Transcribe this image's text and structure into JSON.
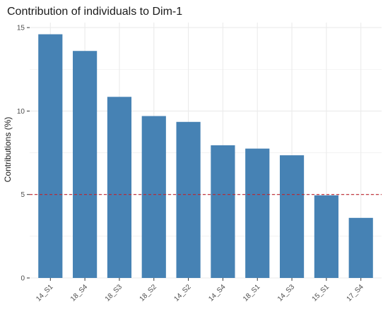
{
  "chart_data": {
    "type": "bar",
    "title": "Contribution of individuals to Dim-1",
    "xlabel": "",
    "ylabel": "Contributions (%)",
    "categories": [
      "14_S1",
      "18_S4",
      "18_S3",
      "18_S2",
      "14_S2",
      "14_S4",
      "18_S1",
      "14_S3",
      "15_S1",
      "17_S4"
    ],
    "values": [
      14.6,
      13.6,
      10.85,
      9.7,
      9.35,
      7.95,
      7.75,
      7.35,
      4.95,
      3.6
    ],
    "ylim": [
      0,
      15.3
    ],
    "yticks": [
      0,
      5,
      10,
      15
    ],
    "reference_line": {
      "value": 5,
      "style": "dashed",
      "color": "#c0242e"
    },
    "bar_color": "#4682b4",
    "grid": true,
    "panel_background": "#ffffff",
    "grid_color": "#ebebeb"
  }
}
